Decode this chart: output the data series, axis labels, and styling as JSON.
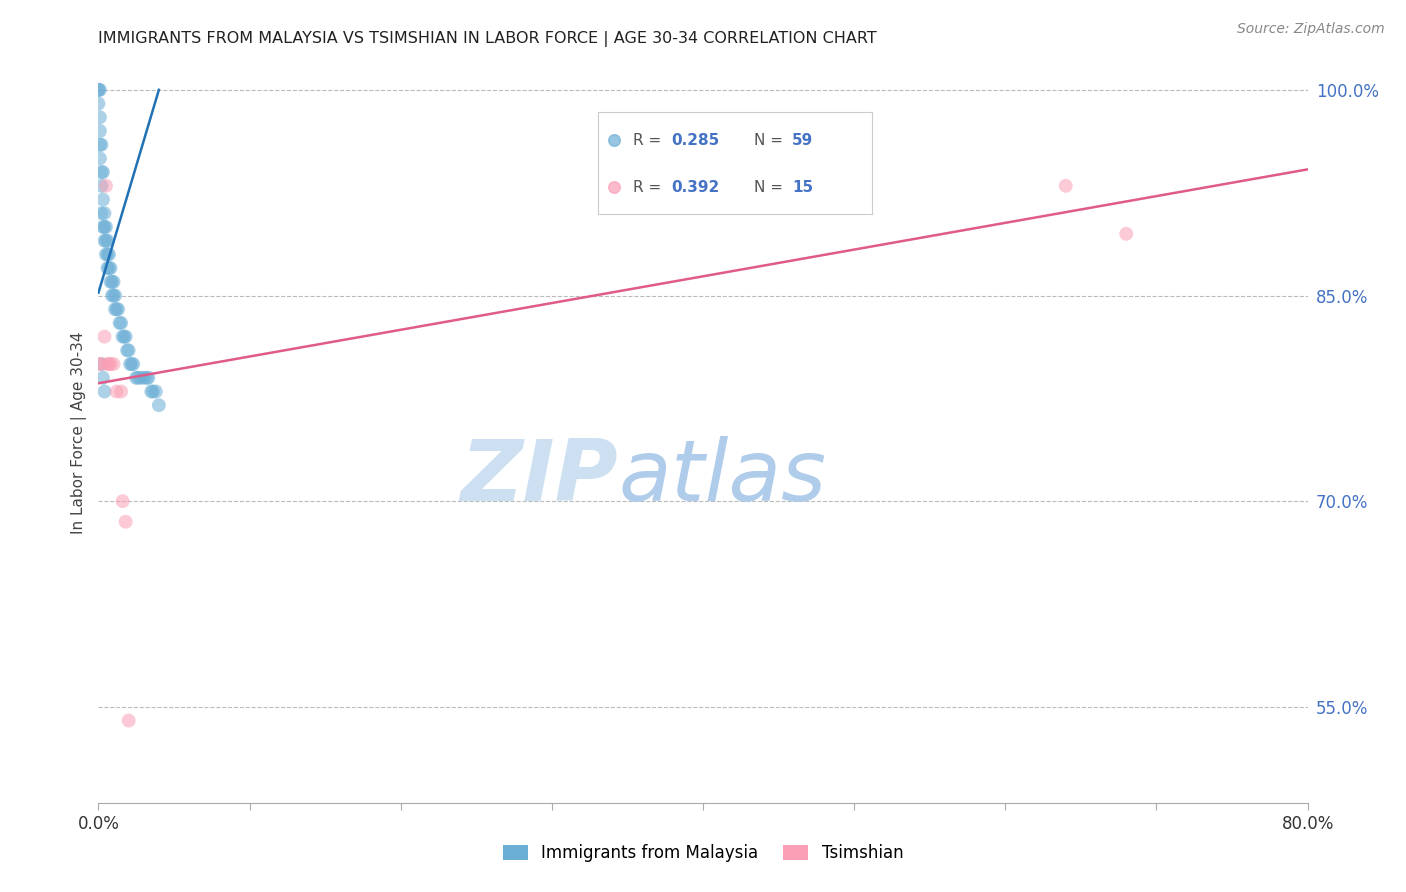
{
  "title": "IMMIGRANTS FROM MALAYSIA VS TSIMSHIAN IN LABOR FORCE | AGE 30-34 CORRELATION CHART",
  "source": "Source: ZipAtlas.com",
  "ylabel": "In Labor Force | Age 30-34",
  "xlim": [
    0.0,
    0.8
  ],
  "ylim": [
    0.48,
    1.02
  ],
  "yticks_right": [
    0.55,
    0.7,
    0.85,
    1.0
  ],
  "ytick_labels_right": [
    "55.0%",
    "70.0%",
    "85.0%",
    "100.0%"
  ],
  "malaysia_color": "#6baed6",
  "tsimshian_color": "#fa9fb5",
  "malaysia_line_color": "#2171b5",
  "tsimshian_line_color": "#e05a8a",
  "grid_color": "#bbbbbb",
  "right_axis_color": "#4472c4",
  "watermark_zip_color": "#daeaf7",
  "watermark_atlas_color": "#b8d4ee",
  "malaysia_x": [
    0.0,
    0.0,
    0.0,
    0.001,
    0.001,
    0.001,
    0.001,
    0.001,
    0.002,
    0.002,
    0.002,
    0.002,
    0.003,
    0.003,
    0.003,
    0.004,
    0.004,
    0.004,
    0.005,
    0.005,
    0.005,
    0.006,
    0.006,
    0.006,
    0.007,
    0.007,
    0.008,
    0.008,
    0.009,
    0.009,
    0.01,
    0.01,
    0.011,
    0.011,
    0.012,
    0.013,
    0.014,
    0.015,
    0.016,
    0.017,
    0.018,
    0.019,
    0.02,
    0.021,
    0.022,
    0.023,
    0.025,
    0.026,
    0.028,
    0.03,
    0.032,
    0.033,
    0.035,
    0.036,
    0.038,
    0.04,
    0.002,
    0.003,
    0.004
  ],
  "malaysia_y": [
    1.0,
    1.0,
    0.99,
    1.0,
    0.98,
    0.97,
    0.96,
    0.95,
    0.96,
    0.94,
    0.93,
    0.91,
    0.94,
    0.92,
    0.9,
    0.91,
    0.9,
    0.89,
    0.9,
    0.89,
    0.88,
    0.89,
    0.88,
    0.87,
    0.88,
    0.87,
    0.87,
    0.86,
    0.86,
    0.85,
    0.86,
    0.85,
    0.85,
    0.84,
    0.84,
    0.84,
    0.83,
    0.83,
    0.82,
    0.82,
    0.82,
    0.81,
    0.81,
    0.8,
    0.8,
    0.8,
    0.79,
    0.79,
    0.79,
    0.79,
    0.79,
    0.79,
    0.78,
    0.78,
    0.78,
    0.77,
    0.8,
    0.79,
    0.78
  ],
  "tsimshian_x": [
    0.0,
    0.002,
    0.004,
    0.005,
    0.006,
    0.007,
    0.008,
    0.01,
    0.012,
    0.015,
    0.016,
    0.018,
    0.02,
    0.64,
    0.68
  ],
  "tsimshian_y": [
    0.8,
    0.8,
    0.82,
    0.93,
    0.8,
    0.8,
    0.8,
    0.8,
    0.78,
    0.78,
    0.7,
    0.685,
    0.54,
    0.93,
    0.895
  ],
  "tsimshian_trendline_x": [
    0.0,
    0.8
  ],
  "tsimshian_trendline_y": [
    0.786,
    0.942
  ],
  "malaysia_trendline_x": [
    0.0,
    0.04
  ],
  "malaysia_trendline_y": [
    0.852,
    1.0
  ]
}
